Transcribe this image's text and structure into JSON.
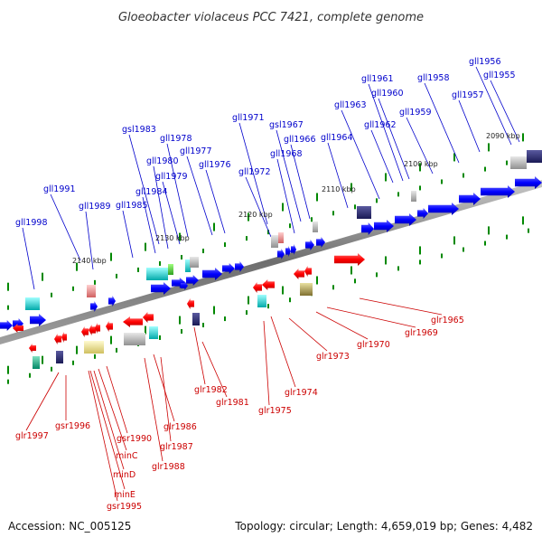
{
  "title": "Gloeobacter violaceus PCC 7421, complete genome",
  "footer": {
    "accession": "Accession: NC_005125",
    "topology": "Topology: circular; Length: 4,659,019 bp; Genes: 4,482"
  },
  "scale_labels": [
    "2090 kbp",
    "2100 kbp",
    "2110 kbp",
    "2120 kbp",
    "2130 kbp",
    "2140 kbp"
  ],
  "top_genes": [
    "gll1956",
    "gll1955",
    "gll1961",
    "gll1958",
    "gll1960",
    "gll1957",
    "gll1963",
    "gll1959",
    "gll1962",
    "gll1971",
    "gsl1967",
    "gsl1983",
    "gll1966",
    "gll1978",
    "gll1964",
    "gll1977",
    "gll1968",
    "gll1980",
    "gll1976",
    "gll1972",
    "gll1979",
    "gll1991",
    "gll1984",
    "gll1989",
    "gll1985",
    "gll1998"
  ],
  "bottom_genes": [
    "glr1965",
    "glr1969",
    "glr1970",
    "glr1973",
    "glr1974",
    "glr1982",
    "glr1981",
    "glr1975",
    "glr1997",
    "gsr1996",
    "glr1986",
    "gsr1990",
    "glr1987",
    "minC",
    "glr1988",
    "minD",
    "minE",
    "gsr1995"
  ],
  "colors": {
    "top_label": "#0000cc",
    "bottom_label": "#cc0000",
    "forward_gene": "#0000ff",
    "reverse_gene": "#ff0000",
    "genome_line": "#808080",
    "tick": "#008800"
  }
}
